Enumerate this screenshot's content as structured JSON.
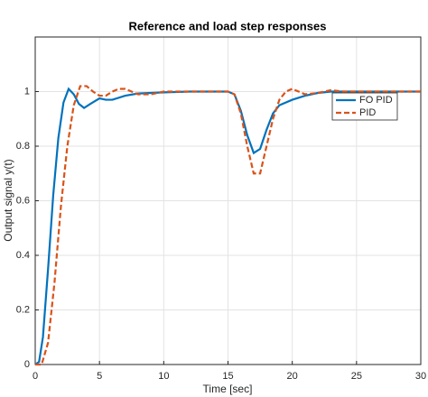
{
  "chart_data": {
    "type": "line",
    "title": "Reference and load step responses",
    "x_label": "Time [sec]",
    "y_label": "Output signal y(t)",
    "xlim": [
      0,
      30
    ],
    "ylim": [
      0,
      1.2
    ],
    "xticks": [
      0,
      5,
      10,
      15,
      20,
      25,
      30
    ],
    "yticks": [
      0,
      0.2,
      0.4,
      0.6,
      0.8,
      1
    ],
    "grid": true,
    "legend": "upper right",
    "series": [
      {
        "name": "FO PID",
        "color": "#0072bd",
        "dash": false,
        "x": [
          0,
          0.3,
          0.6,
          1,
          1.4,
          1.8,
          2.2,
          2.6,
          3,
          3.4,
          3.8,
          4.3,
          5,
          5.5,
          6,
          7,
          8,
          10,
          12,
          15,
          15.5,
          16,
          16.5,
          17,
          17.5,
          18,
          18.5,
          19,
          20,
          21,
          22,
          23,
          25,
          30
        ],
        "values": [
          0,
          0.01,
          0.1,
          0.35,
          0.62,
          0.83,
          0.96,
          1.01,
          0.99,
          0.955,
          0.94,
          0.955,
          0.975,
          0.97,
          0.97,
          0.985,
          0.993,
          0.997,
          1.0,
          1.0,
          0.99,
          0.93,
          0.84,
          0.775,
          0.79,
          0.86,
          0.92,
          0.95,
          0.97,
          0.985,
          0.995,
          1.0,
          1.0,
          1.0
        ]
      },
      {
        "name": "PID",
        "color": "#d95319",
        "dash": true,
        "x": [
          0,
          0.5,
          1,
          1.5,
          2,
          2.5,
          3,
          3.5,
          4,
          4.5,
          5,
          5.5,
          6,
          6.5,
          7,
          7.5,
          8,
          9,
          10,
          12,
          15,
          15.5,
          16,
          16.5,
          17,
          17.5,
          18,
          18.5,
          19,
          19.5,
          20,
          20.5,
          21,
          22,
          23,
          24,
          26,
          30
        ],
        "values": [
          0,
          0,
          0.08,
          0.3,
          0.58,
          0.8,
          0.95,
          1.02,
          1.02,
          1.0,
          0.985,
          0.985,
          1.0,
          1.01,
          1.01,
          1.0,
          0.99,
          0.99,
          1.0,
          1.0,
          1.0,
          0.99,
          0.92,
          0.8,
          0.7,
          0.7,
          0.8,
          0.9,
          0.97,
          1.0,
          1.01,
          1.0,
          0.99,
          0.995,
          1.005,
          1.0,
          1.0,
          1.0
        ]
      }
    ]
  }
}
